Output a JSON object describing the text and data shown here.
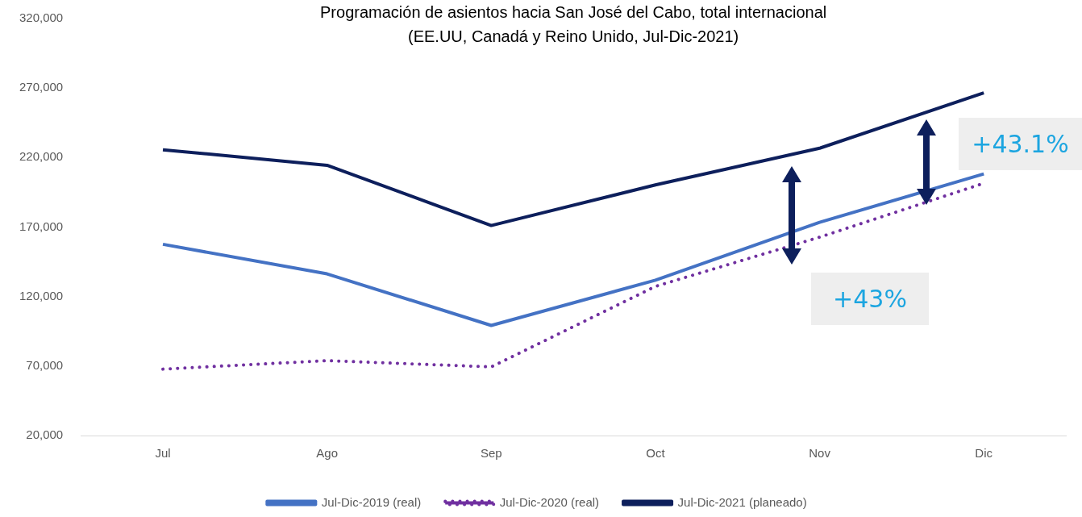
{
  "chart_data": {
    "type": "line",
    "title": "Programación de asientos hacia San José del Cabo, total internacional",
    "subtitle": "(EE.UU, Canadá y Reino Unido, Jul-Dic-2021)",
    "categories": [
      "Jul",
      "Ago",
      "Sep",
      "Oct",
      "Nov",
      "Dic"
    ],
    "series": [
      {
        "name": "Jul-Dic-2019 (real)",
        "color": "#4472c4",
        "line_style": "solid",
        "values": [
          157600,
          136300,
          99200,
          131800,
          173400,
          208200
        ]
      },
      {
        "name": "Jul-Dic-2020 (real)",
        "color": "#7030a0",
        "line_style": "dotted",
        "values": [
          67800,
          73900,
          69400,
          127300,
          162700,
          201500
        ]
      },
      {
        "name": "Jul-Dic-2021 (planeado)",
        "color": "#0d1f5c",
        "line_style": "solid",
        "values": [
          225600,
          214400,
          171100,
          200300,
          226700,
          266600
        ]
      }
    ],
    "ylim": [
      20000,
      320000
    ],
    "yticks": [
      {
        "value": 20000,
        "label": "20,000"
      },
      {
        "value": 70000,
        "label": "70,000"
      },
      {
        "value": 120000,
        "label": "120,000"
      },
      {
        "value": 170000,
        "label": "170,000"
      },
      {
        "value": 220000,
        "label": "220,000"
      },
      {
        "value": 270000,
        "label": "270,000"
      },
      {
        "value": 320000,
        "label": "320,000"
      }
    ],
    "grid": false,
    "legend": "bottom",
    "marker": "none",
    "annotations": [
      "+43%",
      "+43.1%"
    ]
  }
}
